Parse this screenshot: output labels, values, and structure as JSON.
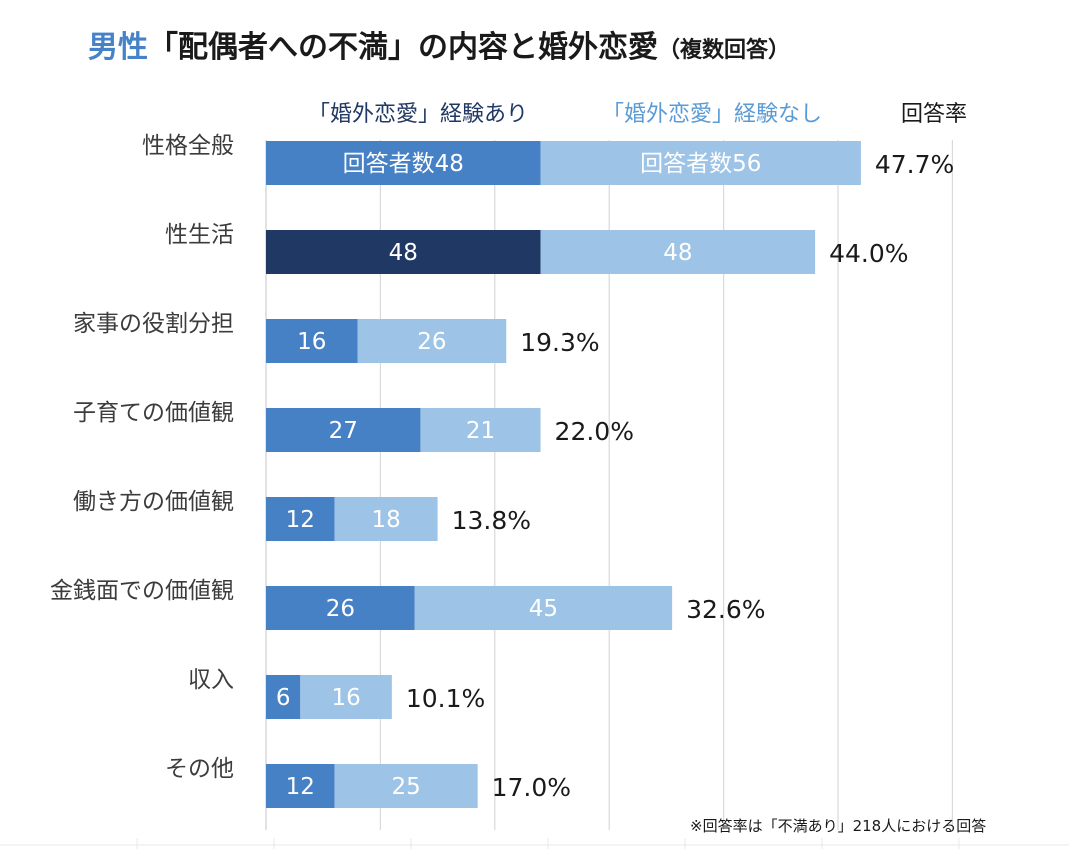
{
  "title": {
    "highlight": "男性",
    "main": "「配偶者への不満」の内容と婚外恋愛",
    "suffix": "（複数回答）"
  },
  "note": "※回答率は「不満あり」218人における回答",
  "colors": {
    "series1": "#4680c5",
    "series1_highlight": "#203864",
    "series2": "#9dc3e6",
    "legend1_text": "#203864",
    "legend2_text": "#5b9bd5",
    "grid": "#d9d9d9",
    "title_highlight": "#4682c8"
  },
  "chart_data": {
    "type": "bar",
    "orientation": "horizontal",
    "stacked": true,
    "categories": [
      "性格全般",
      "性生活",
      "家事の役割分担",
      "子育ての価値観",
      "働き方の価値観",
      "金銭面での価値観",
      "収入",
      "その他"
    ],
    "series": [
      {
        "name": "「婚外恋愛」経験あり",
        "values": [
          48,
          48,
          16,
          27,
          12,
          26,
          6,
          12
        ]
      },
      {
        "name": "「婚外恋愛」経験なし",
        "values": [
          56,
          48,
          26,
          21,
          18,
          45,
          16,
          25
        ]
      }
    ],
    "value_labels": [
      [
        "回答者数48",
        "48",
        "16",
        "27",
        "12",
        "26",
        "6",
        "12"
      ],
      [
        "回答者数56",
        "48",
        "26",
        "21",
        "18",
        "45",
        "16",
        "25"
      ]
    ],
    "highlight": {
      "series": 0,
      "index": 1
    },
    "rate_header": "回答率",
    "rates": [
      "47.7%",
      "44.0%",
      "19.3%",
      "22.0%",
      "13.8%",
      "32.6%",
      "10.1%",
      "17.0%"
    ],
    "xlim": [
      0,
      120
    ],
    "grid": true,
    "legend": "top"
  }
}
